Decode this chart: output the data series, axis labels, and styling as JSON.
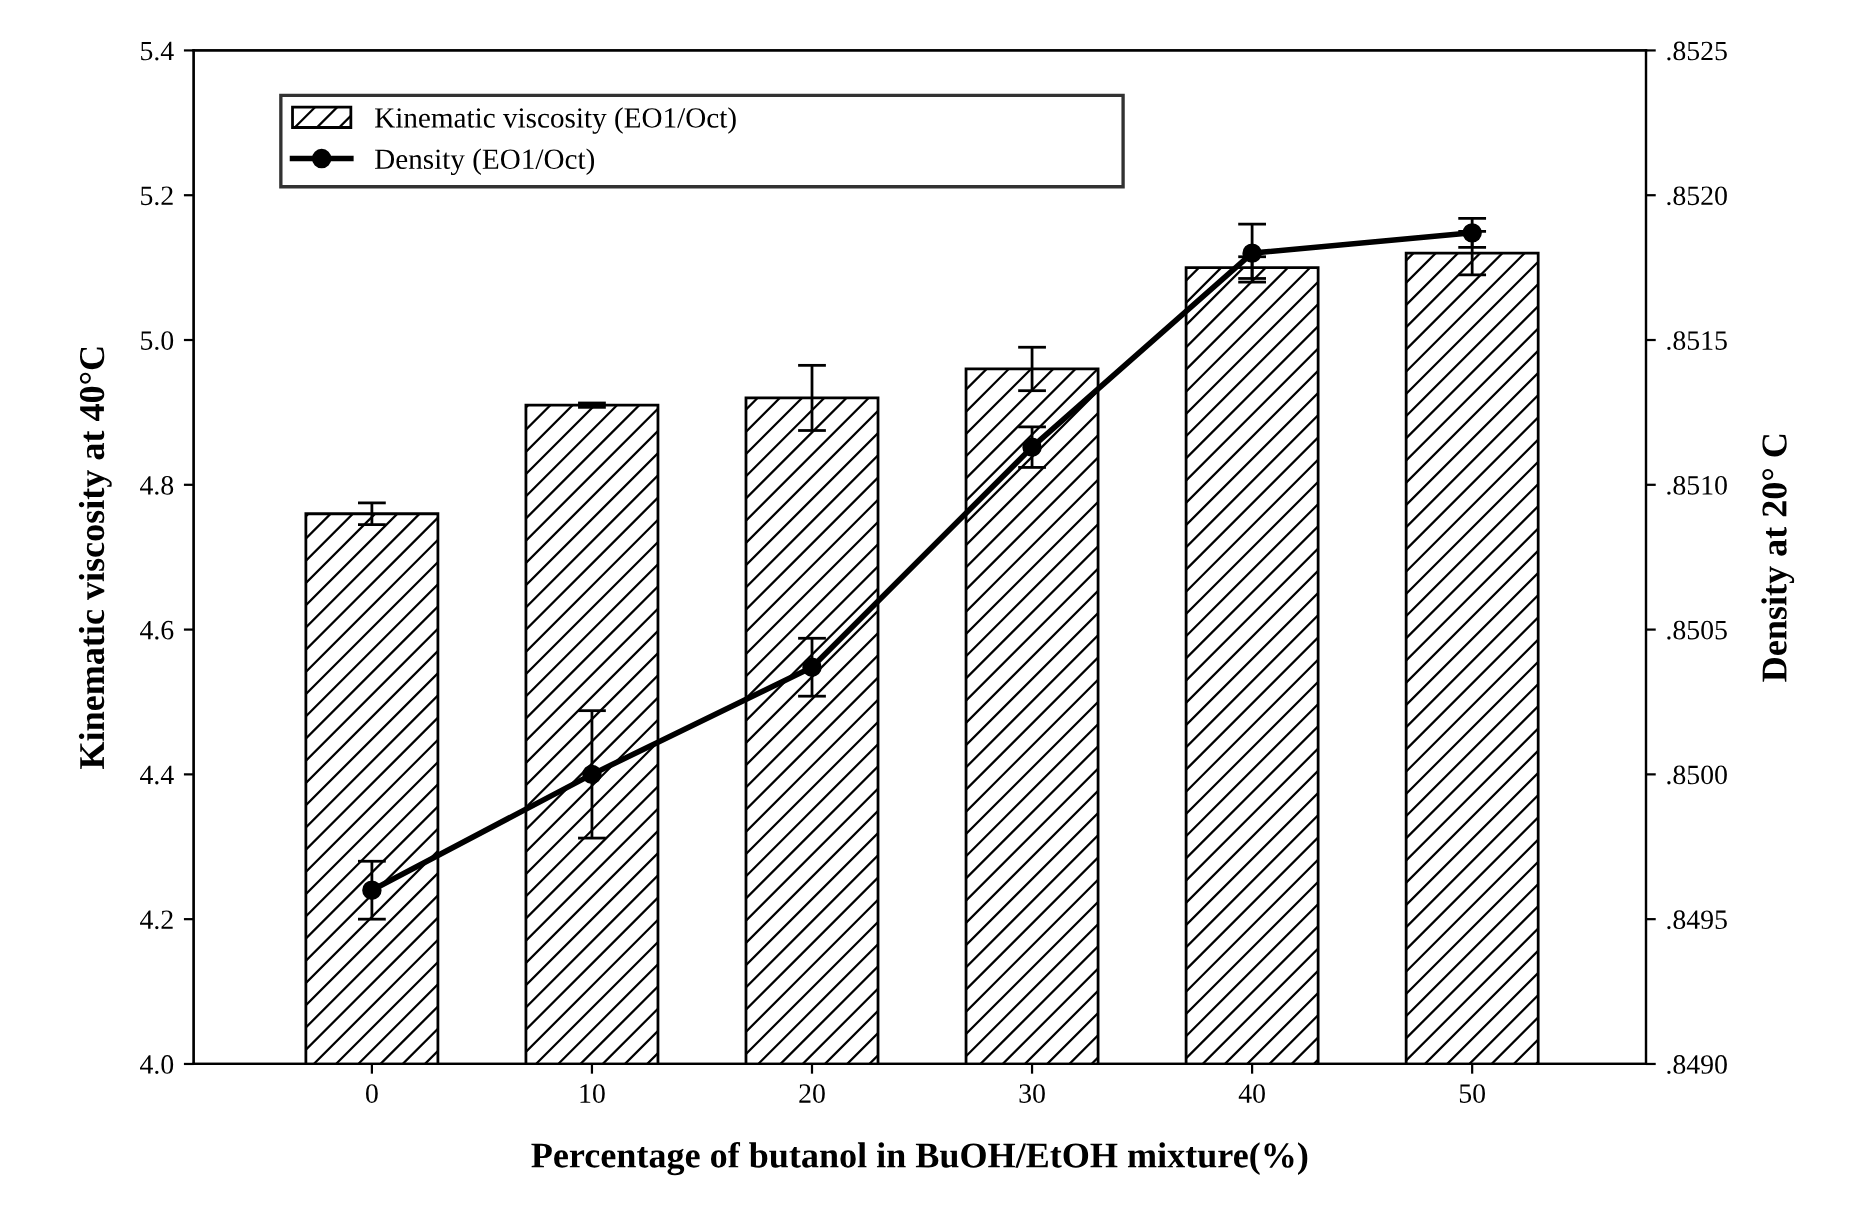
{
  "chart_data": {
    "type": "bar",
    "xlabel": "Percentage of butanol in BuOH/EtOH mixture(%)",
    "ylabel": "Kinematic viscosity at 40°C",
    "y2label": "Density at 20° C",
    "categories": [
      "0",
      "10",
      "20",
      "30",
      "40",
      "50"
    ],
    "series": [
      {
        "name": "Kinematic viscosity (EO1/Oct)",
        "color": "#000000",
        "values": [
          4.76,
          4.91,
          4.92,
          4.96,
          5.1,
          5.12
        ],
        "errors": [
          0.015,
          0.003,
          0.045,
          0.03,
          0.015,
          0.03
        ]
      },
      {
        "name": "Density (EO1/Oct)",
        "type": "line",
        "axis": "y2",
        "color": "#000000",
        "marker": "circle",
        "values": [
          0.8496,
          0.85,
          0.85037,
          0.85113,
          0.8518,
          0.85187
        ],
        "errors": [
          0.0001,
          0.00022,
          0.0001,
          7e-05,
          0.0001,
          5e-05
        ]
      }
    ],
    "ylim": [
      4.0,
      5.4
    ],
    "yticks": [
      {
        "value": 4.0,
        "label": "4.0"
      },
      4.2,
      4.4,
      4.6,
      4.8,
      {
        "value": 5.0,
        "label": "5.0"
      },
      5.2,
      5.4
    ],
    "y2lim": [
      0.849,
      0.8525
    ],
    "y2ticks": [
      {
        "value": 0.849,
        "label": ".8490"
      },
      {
        "value": 0.8495,
        "label": ".8495"
      },
      {
        "value": 0.85,
        "label": ".8500"
      },
      {
        "value": 0.8505,
        "label": ".8505"
      },
      {
        "value": 0.851,
        "label": ".8510"
      },
      {
        "value": 0.8515,
        "label": ".8515"
      },
      {
        "value": 0.852,
        "label": ".8520"
      },
      {
        "value": 0.8525,
        "label": ".8525"
      }
    ],
    "legend": "top left",
    "grid": false
  }
}
